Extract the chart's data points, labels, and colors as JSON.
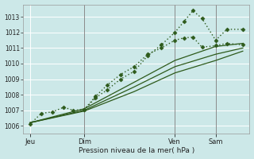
{
  "xlabel": "Pression niveau de la mer( hPa )",
  "bg_color": "#cce8e8",
  "grid_color": "#ffffff",
  "line_color": "#2d5a1b",
  "ylim": [
    1005.5,
    1013.8
  ],
  "yticks": [
    1006,
    1007,
    1008,
    1009,
    1010,
    1011,
    1012,
    1013
  ],
  "xlim": [
    0,
    100
  ],
  "day_labels": [
    "Jeu",
    "Dim",
    "Ven",
    "Sam"
  ],
  "day_positions": [
    3,
    27,
    67,
    85
  ],
  "vline_positions": [
    27,
    67,
    85
  ],
  "lines": [
    {
      "x": [
        3,
        8,
        13,
        18,
        22,
        27,
        32,
        37,
        43,
        49,
        55,
        61,
        67,
        71,
        75,
        79,
        85,
        90,
        97
      ],
      "y": [
        1006.1,
        1006.8,
        1006.9,
        1007.2,
        1007.0,
        1007.05,
        1007.9,
        1008.6,
        1009.3,
        1009.8,
        1010.6,
        1011.0,
        1011.5,
        1011.65,
        1011.7,
        1011.05,
        1011.15,
        1011.3,
        1011.2
      ],
      "style": "dotted",
      "marker": "D",
      "markersize": 2.5,
      "linewidth": 1.0
    },
    {
      "x": [
        27,
        32,
        37,
        43,
        49,
        55,
        61,
        67,
        71,
        75,
        79,
        85,
        90,
        97
      ],
      "y": [
        1007.05,
        1007.8,
        1008.3,
        1009.0,
        1009.5,
        1010.5,
        1011.2,
        1012.0,
        1012.7,
        1013.4,
        1012.9,
        1011.5,
        1012.2,
        1012.2
      ],
      "style": "dotted",
      "marker": "D",
      "markersize": 2.5,
      "linewidth": 1.0
    },
    {
      "x": [
        3,
        27,
        49,
        67,
        85,
        97
      ],
      "y": [
        1006.2,
        1007.1,
        1008.8,
        1010.2,
        1011.1,
        1011.3
      ],
      "style": "solid",
      "marker": null,
      "markersize": 0,
      "linewidth": 0.9
    },
    {
      "x": [
        3,
        27,
        49,
        67,
        85,
        97
      ],
      "y": [
        1006.2,
        1007.0,
        1008.5,
        1009.8,
        1010.6,
        1011.0
      ],
      "style": "solid",
      "marker": null,
      "markersize": 0,
      "linewidth": 0.9
    },
    {
      "x": [
        3,
        27,
        49,
        67,
        85,
        97
      ],
      "y": [
        1006.2,
        1006.95,
        1008.2,
        1009.4,
        1010.2,
        1010.8
      ],
      "style": "solid",
      "marker": null,
      "markersize": 0,
      "linewidth": 0.9
    }
  ]
}
